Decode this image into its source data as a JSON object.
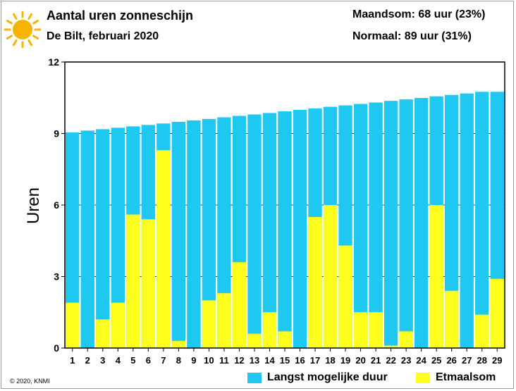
{
  "header": {
    "title": "Aantal uren zonneschijn",
    "subtitle": "De Bilt, februari 2020",
    "stat_month": "Maandsom: 68 uur (23%)",
    "stat_normal": "Normaal: 89 uur (31%)",
    "icon": "sun-icon"
  },
  "footer": {
    "copyright": "© 2020, KNMI"
  },
  "colors": {
    "max_duration": "#1ec8f0",
    "actual": "#ffff1e",
    "sun": "#f5b400"
  },
  "chart_data": {
    "type": "bar",
    "title": "",
    "ylabel": "Uren",
    "xlabel": "",
    "ylim": [
      0,
      12
    ],
    "yticks": [
      "0",
      "3",
      "6",
      "9",
      "12"
    ],
    "grid": true,
    "legend_position": "bottom",
    "categories": [
      "1",
      "2",
      "3",
      "4",
      "5",
      "6",
      "7",
      "8",
      "9",
      "10",
      "11",
      "12",
      "13",
      "14",
      "15",
      "16",
      "17",
      "18",
      "19",
      "20",
      "21",
      "22",
      "23",
      "24",
      "25",
      "26",
      "27",
      "28",
      "29"
    ],
    "series": [
      {
        "name": "Langst mogelijke duur",
        "values": [
          9.05,
          9.12,
          9.18,
          9.24,
          9.3,
          9.36,
          9.42,
          9.49,
          9.55,
          9.61,
          9.68,
          9.74,
          9.8,
          9.86,
          9.93,
          9.99,
          10.05,
          10.12,
          10.18,
          10.24,
          10.3,
          10.37,
          10.43,
          10.49,
          10.56,
          10.62,
          10.68,
          10.75,
          10.75
        ]
      },
      {
        "name": "Etmaalsom",
        "values": [
          1.9,
          0.0,
          1.2,
          1.9,
          5.6,
          5.4,
          8.3,
          0.3,
          0.0,
          2.0,
          2.3,
          3.6,
          0.6,
          1.5,
          0.7,
          0.0,
          5.5,
          6.0,
          4.3,
          1.5,
          1.5,
          0.1,
          0.7,
          0.0,
          6.0,
          2.4,
          0.0,
          1.4,
          2.9
        ]
      }
    ]
  }
}
